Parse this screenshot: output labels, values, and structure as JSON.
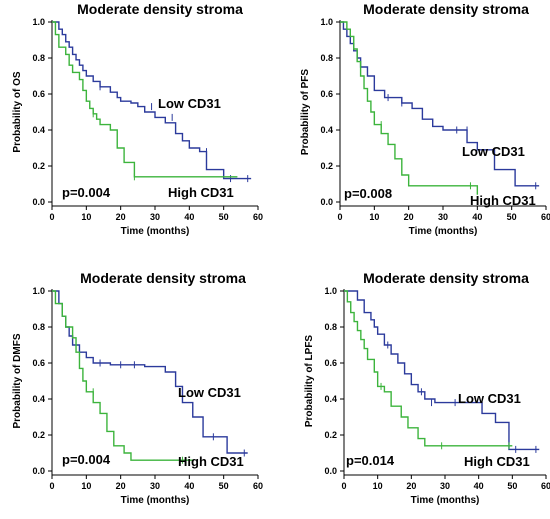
{
  "colors": {
    "low": "#2b3a9c",
    "high": "#3cb43c"
  },
  "chart_data": [
    {
      "type": "line",
      "chart_kind": "kaplan-meier",
      "title": "Moderate density stroma",
      "xlabel": "Time (months)",
      "ylabel": "Probability of OS",
      "xlim": [
        0,
        60
      ],
      "ylim": [
        0,
        1
      ],
      "xticks": [
        0,
        10,
        20,
        30,
        40,
        50,
        60
      ],
      "yticks": [
        0.0,
        0.2,
        0.4,
        0.6,
        0.8,
        1.0
      ],
      "pvalue": "p=0.004",
      "series": [
        {
          "name": "Low CD31",
          "color_key": "low",
          "x": [
            0,
            2,
            3,
            4,
            5,
            6,
            7,
            8,
            9,
            10,
            12,
            14,
            17,
            19,
            20,
            23,
            25,
            27,
            30,
            33,
            36,
            38,
            40,
            43,
            45,
            50,
            58
          ],
          "y": [
            1.0,
            0.96,
            0.93,
            0.89,
            0.86,
            0.82,
            0.79,
            0.76,
            0.73,
            0.7,
            0.67,
            0.64,
            0.61,
            0.58,
            0.56,
            0.55,
            0.53,
            0.5,
            0.47,
            0.44,
            0.38,
            0.34,
            0.3,
            0.28,
            0.18,
            0.13,
            0.13
          ],
          "censored": [
            [
              14,
              0.64
            ],
            [
              29,
              0.53
            ],
            [
              35,
              0.47
            ],
            [
              45,
              0.28
            ],
            [
              52,
              0.13
            ],
            [
              57,
              0.13
            ]
          ]
        },
        {
          "name": "High CD31",
          "color_key": "high",
          "x": [
            0,
            1,
            2,
            4,
            5,
            6,
            8,
            9,
            10,
            11,
            12,
            13,
            14,
            17,
            19,
            21,
            24,
            54
          ],
          "y": [
            1.0,
            0.93,
            0.86,
            0.82,
            0.76,
            0.72,
            0.68,
            0.62,
            0.56,
            0.52,
            0.49,
            0.46,
            0.43,
            0.4,
            0.3,
            0.22,
            0.14,
            0.14
          ],
          "censored": [
            [
              12,
              0.49
            ],
            [
              24,
              0.14
            ]
          ]
        }
      ]
    },
    {
      "type": "line",
      "chart_kind": "kaplan-meier",
      "title": "Moderate density stroma",
      "xlabel": "Time (months)",
      "ylabel": "Probability of PFS",
      "xlim": [
        0,
        60
      ],
      "ylim": [
        0,
        1
      ],
      "xticks": [
        0,
        10,
        20,
        30,
        40,
        50,
        60
      ],
      "yticks": [
        0.0,
        0.2,
        0.4,
        0.6,
        0.8,
        1.0
      ],
      "pvalue": "p=0.008",
      "series": [
        {
          "name": "Low CD31",
          "color_key": "low",
          "x": [
            0,
            1,
            2,
            3,
            4,
            5,
            6,
            8,
            10,
            13,
            18,
            21,
            24,
            27,
            30,
            37,
            40,
            45,
            51,
            58
          ],
          "y": [
            1.0,
            0.96,
            0.92,
            0.88,
            0.84,
            0.8,
            0.75,
            0.7,
            0.62,
            0.58,
            0.55,
            0.52,
            0.46,
            0.42,
            0.4,
            0.33,
            0.29,
            0.18,
            0.09,
            0.09
          ],
          "censored": [
            [
              14,
              0.58
            ],
            [
              18,
              0.55
            ],
            [
              34,
              0.4
            ],
            [
              37,
              0.4
            ],
            [
              57,
              0.09
            ]
          ]
        },
        {
          "name": "High CD31",
          "color_key": "high",
          "x": [
            0,
            2,
            3,
            4,
            5,
            6,
            7,
            8,
            9,
            10,
            12,
            14,
            16,
            18,
            20,
            40
          ],
          "y": [
            1.0,
            0.96,
            0.92,
            0.85,
            0.78,
            0.7,
            0.63,
            0.56,
            0.5,
            0.43,
            0.38,
            0.32,
            0.24,
            0.15,
            0.09,
            0.04
          ],
          "censored": [
            [
              12,
              0.43
            ],
            [
              38,
              0.09
            ]
          ]
        }
      ]
    },
    {
      "type": "line",
      "chart_kind": "kaplan-meier",
      "title": "Moderate density stroma",
      "xlabel": "Time (months)",
      "ylabel": "Probability of DMFS",
      "xlim": [
        0,
        60
      ],
      "ylim": [
        0,
        1
      ],
      "xticks": [
        0,
        10,
        20,
        30,
        40,
        50,
        60
      ],
      "yticks": [
        0.0,
        0.2,
        0.4,
        0.6,
        0.8,
        1.0
      ],
      "pvalue": "p=0.004",
      "series": [
        {
          "name": "Low CD31",
          "color_key": "low",
          "x": [
            0,
            2,
            3,
            4,
            5,
            6,
            8,
            10,
            12,
            17,
            27,
            33,
            36,
            38,
            41,
            44,
            51,
            57
          ],
          "y": [
            1.0,
            0.93,
            0.86,
            0.8,
            0.75,
            0.7,
            0.66,
            0.63,
            0.6,
            0.59,
            0.58,
            0.55,
            0.47,
            0.38,
            0.3,
            0.19,
            0.1,
            0.1
          ],
          "censored": [
            [
              14,
              0.6
            ],
            [
              20,
              0.59
            ],
            [
              24,
              0.59
            ],
            [
              47,
              0.19
            ],
            [
              56,
              0.1
            ]
          ]
        },
        {
          "name": "High CD31",
          "color_key": "high",
          "x": [
            0,
            1,
            3,
            4,
            6,
            7,
            8,
            9,
            10,
            12,
            14,
            16,
            18,
            21,
            23,
            41
          ],
          "y": [
            1.0,
            0.93,
            0.86,
            0.8,
            0.74,
            0.66,
            0.57,
            0.5,
            0.44,
            0.38,
            0.32,
            0.22,
            0.14,
            0.1,
            0.06,
            0.06
          ],
          "censored": [
            [
              12,
              0.44
            ],
            [
              38,
              0.06
            ]
          ]
        }
      ]
    },
    {
      "type": "line",
      "chart_kind": "kaplan-meier",
      "title": "Moderate density stroma",
      "xlabel": "Time (months)",
      "ylabel": "Probability of LPFS",
      "xlim": [
        0,
        60
      ],
      "ylim": [
        0,
        1
      ],
      "xticks": [
        0,
        10,
        20,
        30,
        40,
        50,
        60
      ],
      "yticks": [
        0.0,
        0.2,
        0.4,
        0.6,
        0.8,
        1.0
      ],
      "pvalue": "p=0.014",
      "series": [
        {
          "name": "Low CD31",
          "color_key": "low",
          "x": [
            0,
            4,
            6,
            8,
            9,
            10,
            12,
            14,
            16,
            18,
            20,
            22,
            24,
            27,
            34,
            41,
            45,
            49,
            58
          ],
          "y": [
            1.0,
            0.95,
            0.88,
            0.84,
            0.8,
            0.76,
            0.7,
            0.65,
            0.6,
            0.54,
            0.48,
            0.44,
            0.4,
            0.38,
            0.38,
            0.32,
            0.27,
            0.12,
            0.12
          ],
          "censored": [
            [
              13,
              0.7
            ],
            [
              23,
              0.44
            ],
            [
              26,
              0.38
            ],
            [
              33,
              0.38
            ],
            [
              51,
              0.12
            ],
            [
              57,
              0.12
            ]
          ]
        },
        {
          "name": "High CD31",
          "color_key": "high",
          "x": [
            0,
            1,
            2,
            3,
            4,
            5,
            6,
            7,
            9,
            10,
            12,
            14,
            17,
            19,
            22,
            24,
            50
          ],
          "y": [
            1.0,
            0.94,
            0.88,
            0.83,
            0.78,
            0.73,
            0.68,
            0.62,
            0.55,
            0.47,
            0.44,
            0.36,
            0.3,
            0.24,
            0.18,
            0.14,
            0.14
          ],
          "censored": [
            [
              11,
              0.47
            ],
            [
              29,
              0.14
            ],
            [
              49,
              0.14
            ]
          ]
        }
      ]
    }
  ]
}
